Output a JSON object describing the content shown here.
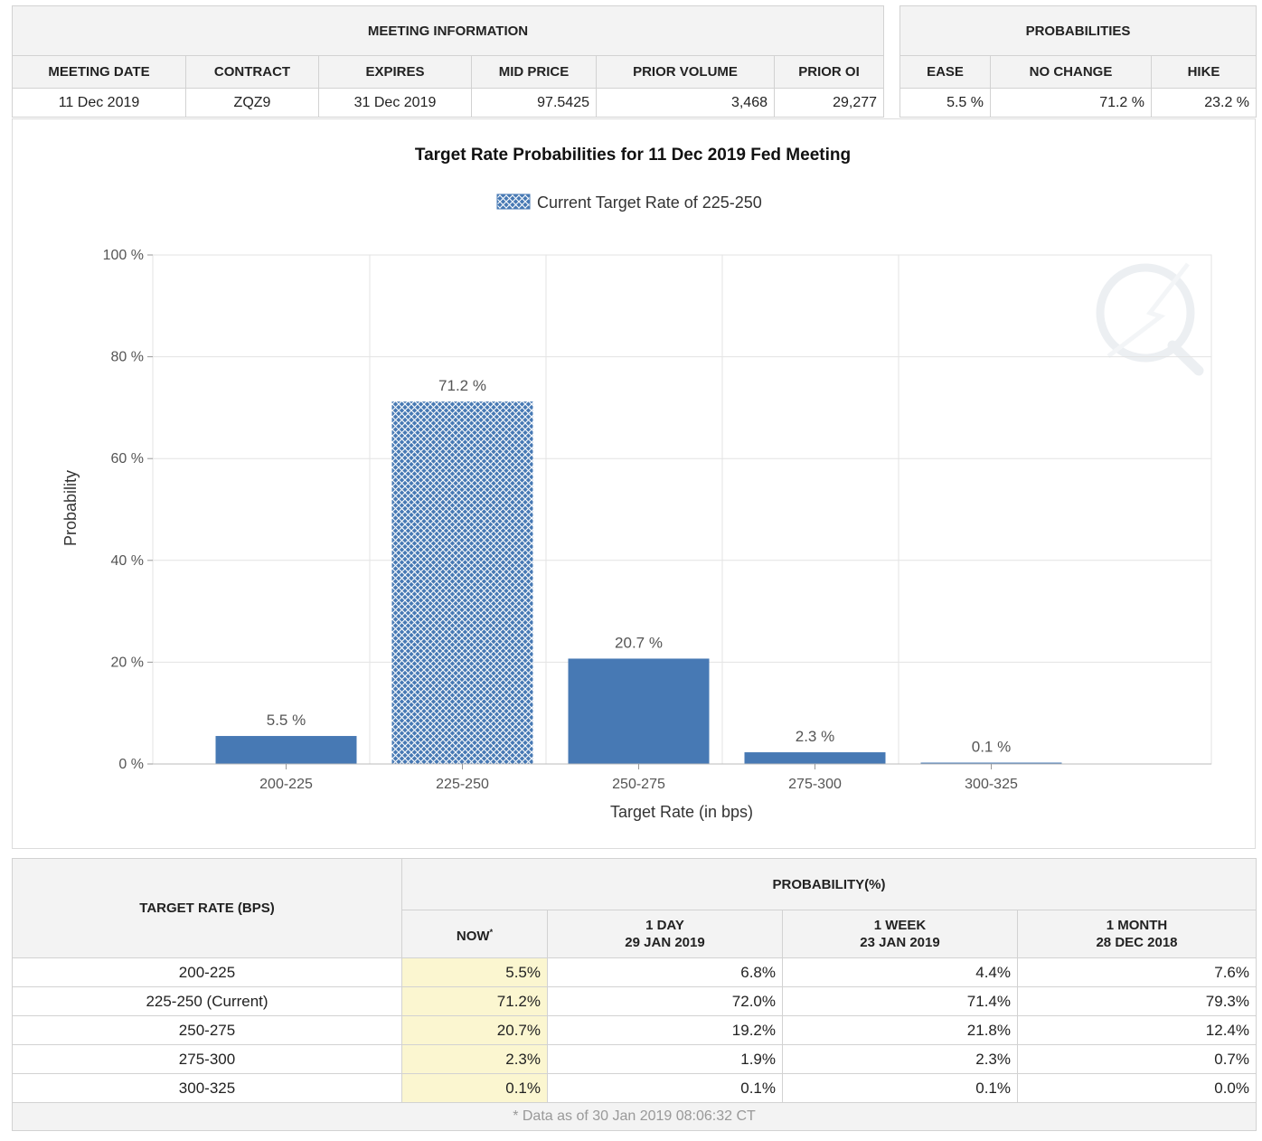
{
  "meeting": {
    "section_title": "MEETING INFORMATION",
    "headers": [
      "MEETING DATE",
      "CONTRACT",
      "EXPIRES",
      "MID PRICE",
      "PRIOR VOLUME",
      "PRIOR OI"
    ],
    "values": [
      "11 Dec 2019",
      "ZQZ9",
      "31 Dec 2019",
      "97.5425",
      "3,468",
      "29,277"
    ]
  },
  "probabilities": {
    "section_title": "PROBABILITIES",
    "headers": [
      "EASE",
      "NO CHANGE",
      "HIKE"
    ],
    "values": [
      "5.5 %",
      "71.2 %",
      "23.2 %"
    ]
  },
  "chart_data": {
    "type": "bar",
    "title": "Target Rate Probabilities for 11 Dec 2019 Fed Meeting",
    "legend": {
      "label": "Current Target Rate of 225-250",
      "placement": "top-center"
    },
    "categories": [
      "200-225",
      "225-250",
      "250-275",
      "275-300",
      "300-325"
    ],
    "values": [
      5.5,
      71.2,
      20.7,
      2.3,
      0.1
    ],
    "data_labels": [
      "5.5 %",
      "71.2 %",
      "20.7 %",
      "2.3 %",
      "0.1 %"
    ],
    "highlighted_category": "225-250",
    "xlabel": "Target Rate (in bps)",
    "ylabel": "Probability",
    "ylim": [
      0,
      100
    ],
    "yticks": [
      0,
      20,
      40,
      60,
      80,
      100
    ],
    "ytick_labels": [
      "0 %",
      "20 %",
      "40 %",
      "60 %",
      "80 %",
      "100 %"
    ],
    "grid": true,
    "bar_color": "#4779b4",
    "watermark_icon": "cme-q-logo-icon"
  },
  "history": {
    "col_target": "TARGET RATE (BPS)",
    "col_prob": "PROBABILITY(%)",
    "now": {
      "label": "NOW",
      "mark": "*"
    },
    "day": {
      "label": "1 DAY",
      "date": "29 JAN 2019"
    },
    "week": {
      "label": "1 WEEK",
      "date": "23 JAN 2019"
    },
    "month": {
      "label": "1 MONTH",
      "date": "28 DEC 2018"
    },
    "rows": [
      {
        "rate": "200-225",
        "now": "5.5%",
        "day": "6.8%",
        "week": "4.4%",
        "month": "7.6%"
      },
      {
        "rate": "225-250 (Current)",
        "now": "71.2%",
        "day": "72.0%",
        "week": "71.4%",
        "month": "79.3%"
      },
      {
        "rate": "250-275",
        "now": "20.7%",
        "day": "19.2%",
        "week": "21.8%",
        "month": "12.4%"
      },
      {
        "rate": "275-300",
        "now": "2.3%",
        "day": "1.9%",
        "week": "2.3%",
        "month": "0.7%"
      },
      {
        "rate": "300-325",
        "now": "0.1%",
        "day": "0.1%",
        "week": "0.1%",
        "month": "0.0%"
      }
    ],
    "footnote": "* Data as of 30 Jan 2019 08:06:32 CT"
  }
}
